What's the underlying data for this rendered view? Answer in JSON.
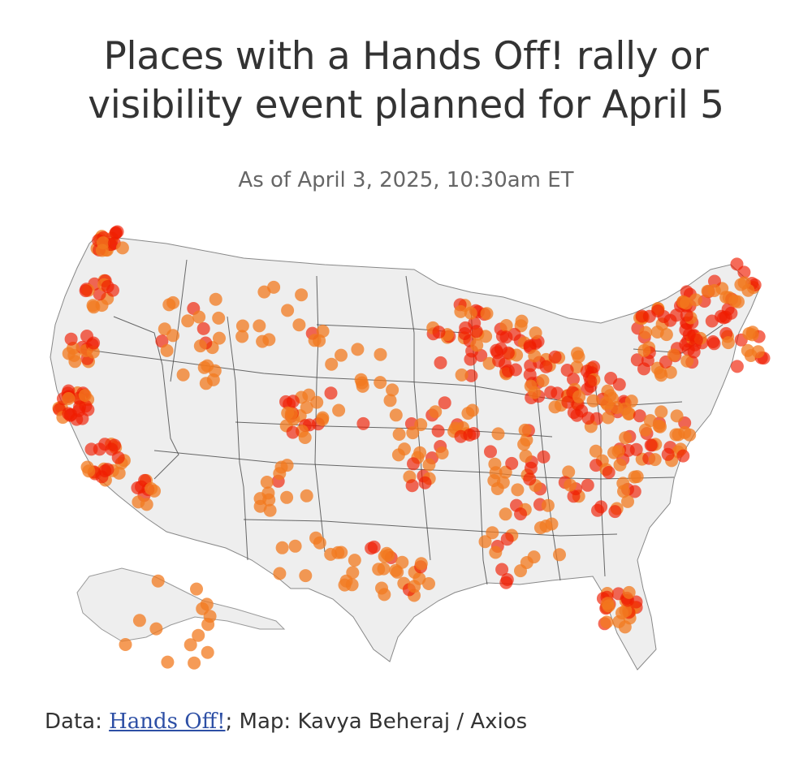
{
  "header": {
    "title_line1": "Places with a Hands Off! rally or",
    "title_line2": "visibility event planned for April 5",
    "subtitle": "As of April 3, 2025, 10:30am ET"
  },
  "footer": {
    "data_label": "Data: ",
    "data_source": "Hands Off!",
    "separator": "; ",
    "map_credit": "Map: Kavya Beheraj / Axios"
  },
  "colors": {
    "land": "#eeeeee",
    "borders": "#444444",
    "dot_fill": "#f27a1f",
    "dot_dense": "#f01c00"
  },
  "map_data": {
    "type": "dot_map",
    "region": "United States",
    "marker": "event location"
  }
}
